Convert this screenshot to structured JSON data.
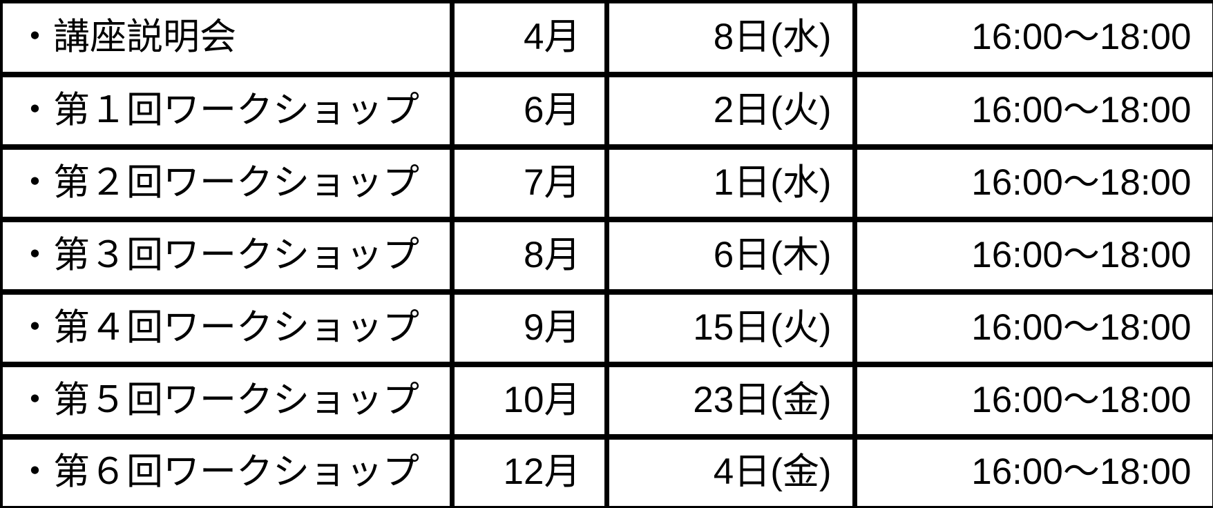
{
  "colors": {
    "border": "#000000",
    "text": "#000000",
    "background": "#ffffff"
  },
  "table": {
    "rows": [
      {
        "event": "・講座説明会",
        "month": "4月",
        "day": "8日(水)",
        "time": "16:00～18:00"
      },
      {
        "event": "・第１回ワークショップ",
        "month": "6月",
        "day": "2日(火)",
        "time": "16:00～18:00"
      },
      {
        "event": "・第２回ワークショップ",
        "month": "7月",
        "day": "1日(水)",
        "time": "16:00～18:00"
      },
      {
        "event": "・第３回ワークショップ",
        "month": "8月",
        "day": "6日(木)",
        "time": "16:00～18:00"
      },
      {
        "event": "・第４回ワークショップ",
        "month": "9月",
        "day": "15日(火)",
        "time": "16:00～18:00"
      },
      {
        "event": "・第５回ワークショップ",
        "month": "10月",
        "day": "23日(金)",
        "time": "16:00～18:00"
      },
      {
        "event": "・第６回ワークショップ",
        "month": "12月",
        "day": "4日(金)",
        "time": "16:00～18:00"
      }
    ]
  }
}
